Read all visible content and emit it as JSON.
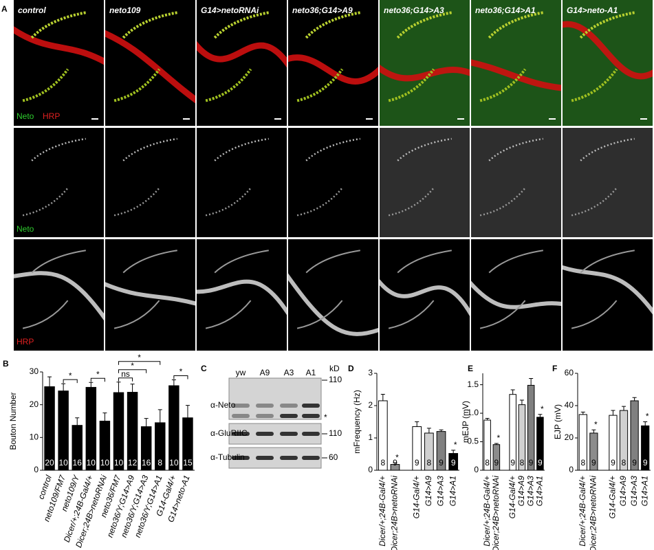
{
  "figure": {
    "panel_labels": [
      "A",
      "B",
      "C",
      "D",
      "E",
      "F"
    ],
    "panel_a": {
      "columns": [
        "control",
        "neto109",
        "G14>netoRNAi",
        "neto36;G14>A9",
        "neto36;G14>A3",
        "neto36;G14>A1",
        "G14>neto-A1"
      ],
      "overlay_labels": [
        "Neto",
        "HRP"
      ],
      "row_labels": [
        "Neto",
        "HRP"
      ]
    },
    "panel_c": {
      "lanes": [
        "yw",
        "A9",
        "A3",
        "A1"
      ],
      "unit": "kD",
      "blots": [
        {
          "label": "α-Neto",
          "marker": 110
        },
        {
          "label": "α-GluRIIC",
          "marker": 110
        },
        {
          "label": "α-Tubulin",
          "marker": 60
        }
      ],
      "band_note": "*"
    }
  },
  "chart_data": [
    {
      "type": "bar",
      "ylabel": "Bouton Number",
      "categories": [
        "control",
        "neto109/FM7",
        "neto109/Y",
        "Dicer/+;24B-Gal4/+",
        "Dicer;24B>netoRNAi",
        "neto36/FM7",
        "neto36/Y;G14>A9",
        "neto36/Y;G14>A3",
        "neto36/Y;G14>A1",
        "G14-Gal4/+",
        "G14>neto-A1"
      ],
      "values": [
        25.5,
        24.2,
        13.7,
        25.3,
        15,
        23.7,
        23.8,
        13.3,
        14.5,
        25.8,
        16
      ],
      "errors": [
        3,
        2.2,
        2.3,
        1.5,
        2.5,
        3.2,
        2.5,
        2.5,
        4,
        1.8,
        3.8
      ],
      "n": [
        20,
        10,
        16,
        10,
        10,
        10,
        12,
        16,
        8,
        10,
        15
      ],
      "color": "#000000",
      "ylim": [
        0,
        30
      ],
      "yticks": [
        0,
        10,
        20,
        30
      ],
      "annotations": [
        {
          "text": "*",
          "from": 1,
          "to": 2
        },
        {
          "text": "*",
          "from": 3,
          "to": 4
        },
        {
          "text": "ns",
          "from": 5,
          "to": 6
        },
        {
          "text": "*",
          "from": 5,
          "to": 7
        },
        {
          "text": "*",
          "from": 5,
          "to": 8
        },
        {
          "text": "*",
          "from": 9,
          "to": 10
        }
      ]
    },
    {
      "type": "bar",
      "ylabel": "mFrequency (Hz)",
      "categories": [
        "Dicer/+;24B-Gal4/+",
        "Dicer;24B>netoRNAi",
        "G14-Gal4/+",
        "G14>A9",
        "G14>A3",
        "G14>A1"
      ],
      "values": [
        2.15,
        0.18,
        1.35,
        1.15,
        1.2,
        0.52
      ],
      "errors": [
        0.2,
        0.05,
        0.15,
        0.15,
        0.05,
        0.1
      ],
      "n": [
        8,
        9,
        9,
        8,
        9,
        9
      ],
      "colors": [
        "#ffffff",
        "#8c8c8c",
        "#ffffff",
        "#d0d0d0",
        "#808080",
        "#000000"
      ],
      "ylim": [
        0,
        3
      ],
      "yticks": [
        0,
        1,
        2,
        3
      ],
      "annotations": [
        {
          "text": "*",
          "category": 1
        },
        {
          "text": "*",
          "category": 5
        }
      ]
    },
    {
      "type": "bar",
      "ylabel": "mEJP (mV)",
      "categories": [
        "Dicer/+;24B-Gal4/+",
        "Dicer;24B>netoRNAi",
        "G14-Gal4/+",
        "G14>A9",
        "G14>A3",
        "G14>A1"
      ],
      "values": [
        0.88,
        0.45,
        1.33,
        1.15,
        1.49,
        0.93
      ],
      "errors": [
        0.03,
        0.02,
        0.08,
        0.08,
        0.12,
        0.05
      ],
      "n": [
        8,
        9,
        9,
        8,
        9,
        9
      ],
      "colors": [
        "#ffffff",
        "#8c8c8c",
        "#ffffff",
        "#d0d0d0",
        "#808080",
        "#000000"
      ],
      "ylim": [
        0,
        1.7
      ],
      "yticks": [
        0,
        0.5,
        {
          "value": 1,
          "label": "1.0"
        },
        1.5
      ],
      "annotations": [
        {
          "text": "*",
          "category": 1
        },
        {
          "text": "*",
          "category": 5
        }
      ]
    },
    {
      "type": "bar",
      "ylabel": "EJP (mV)",
      "categories": [
        "Dicer/+;24B-Gal4/+",
        "Dicer;24B>netoRNAi",
        "G14-Gal4/+",
        "G14>A9",
        "G14>A3",
        "G14>A1"
      ],
      "values": [
        34.5,
        23,
        34,
        37,
        43,
        27.5
      ],
      "errors": [
        1.5,
        2,
        3,
        2.5,
        2,
        2.5
      ],
      "n": [
        8,
        9,
        9,
        8,
        9,
        9
      ],
      "colors": [
        "#ffffff",
        "#8c8c8c",
        "#ffffff",
        "#d0d0d0",
        "#808080",
        "#000000"
      ],
      "ylim": [
        0,
        60
      ],
      "yticks": [
        0,
        20,
        40,
        60
      ],
      "annotations": [
        {
          "text": "*",
          "category": 1
        },
        {
          "text": "*",
          "category": 5
        }
      ]
    }
  ]
}
